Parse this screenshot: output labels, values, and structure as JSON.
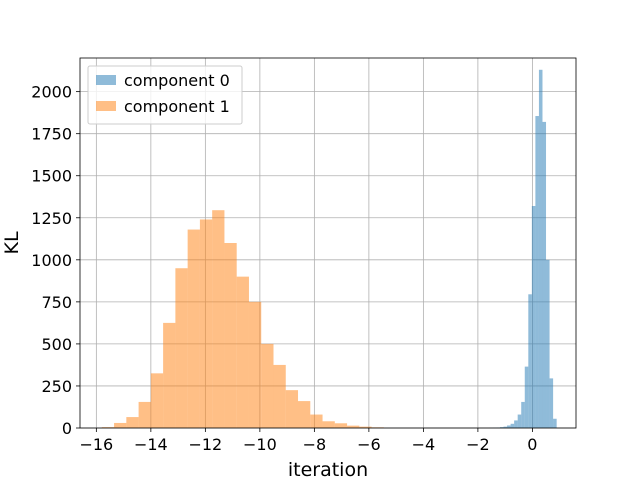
{
  "chart_data": {
    "type": "histogram",
    "xlabel": "iteration",
    "ylabel": "KL",
    "xlim": [
      -16.6,
      1.6
    ],
    "ylim": [
      0,
      2200
    ],
    "xticks": [
      -16,
      -14,
      -12,
      -10,
      -8,
      -6,
      -4,
      -2,
      0
    ],
    "yticks": [
      0,
      250,
      500,
      750,
      1000,
      1250,
      1500,
      1750,
      2000
    ],
    "xtick_labels": [
      "−16",
      "−14",
      "−12",
      "−10",
      "−8",
      "−6",
      "−4",
      "−2",
      "0"
    ],
    "ytick_labels": [
      "0",
      "250",
      "500",
      "750",
      "1000",
      "1250",
      "1500",
      "1750",
      "2000"
    ],
    "grid": true,
    "legend_position": "top-left",
    "series": [
      {
        "name": "component 0",
        "color": "#1f77b4",
        "alpha": 0.5,
        "bins": [
          [
            -1.58,
            -1.45,
            1
          ],
          [
            -1.45,
            -1.32,
            2
          ],
          [
            -1.32,
            -1.19,
            3
          ],
          [
            -1.19,
            -1.06,
            5
          ],
          [
            -1.06,
            -0.93,
            8
          ],
          [
            -0.93,
            -0.8,
            15
          ],
          [
            -0.8,
            -0.67,
            25
          ],
          [
            -0.67,
            -0.54,
            45
          ],
          [
            -0.54,
            -0.41,
            80
          ],
          [
            -0.41,
            -0.28,
            155
          ],
          [
            -0.28,
            -0.15,
            365
          ],
          [
            -0.15,
            -0.02,
            795
          ],
          [
            -0.02,
            0.11,
            1320
          ],
          [
            0.11,
            0.24,
            1855
          ],
          [
            0.24,
            0.37,
            2130
          ],
          [
            0.37,
            0.5,
            1820
          ],
          [
            0.5,
            0.63,
            1000
          ],
          [
            0.63,
            0.76,
            295
          ],
          [
            0.76,
            0.89,
            55
          ]
        ]
      },
      {
        "name": "component 1",
        "color": "#ff7f0e",
        "alpha": 0.5,
        "bins": [
          [
            -15.8,
            -15.35,
            5
          ],
          [
            -15.35,
            -14.9,
            30
          ],
          [
            -14.9,
            -14.45,
            65
          ],
          [
            -14.45,
            -14.0,
            155
          ],
          [
            -14.0,
            -13.55,
            325
          ],
          [
            -13.55,
            -13.1,
            625
          ],
          [
            -13.1,
            -12.65,
            950
          ],
          [
            -12.65,
            -12.2,
            1180
          ],
          [
            -12.2,
            -11.75,
            1240
          ],
          [
            -11.75,
            -11.3,
            1295
          ],
          [
            -11.3,
            -10.85,
            1100
          ],
          [
            -10.85,
            -10.4,
            900
          ],
          [
            -10.4,
            -9.95,
            750
          ],
          [
            -9.95,
            -9.5,
            500
          ],
          [
            -9.5,
            -9.05,
            375
          ],
          [
            -9.05,
            -8.6,
            225
          ],
          [
            -8.6,
            -8.15,
            160
          ],
          [
            -8.15,
            -7.7,
            80
          ],
          [
            -7.7,
            -7.25,
            40
          ],
          [
            -7.25,
            -6.8,
            28
          ],
          [
            -6.8,
            -6.35,
            14
          ],
          [
            -6.35,
            -5.9,
            8
          ],
          [
            -5.9,
            -5.45,
            4
          ]
        ]
      }
    ]
  }
}
